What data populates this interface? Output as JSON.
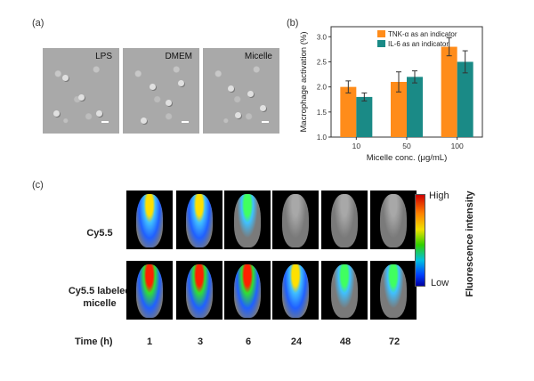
{
  "panel_a": {
    "label": "(a)",
    "images": [
      {
        "label": "LPS"
      },
      {
        "label": "DMEM"
      },
      {
        "label": "Micelle"
      }
    ]
  },
  "panel_b": {
    "label": "(b)"
  },
  "chart_data": {
    "type": "bar",
    "categories": [
      "10",
      "50",
      "100"
    ],
    "series": [
      {
        "name": "TNK-α as an indicator",
        "color": "#ff8c1a",
        "values": [
          2.0,
          2.1,
          2.8
        ],
        "errors": [
          0.12,
          0.2,
          0.18
        ]
      },
      {
        "name": "IL-6 as an indicator",
        "color": "#1a8a86",
        "values": [
          1.8,
          2.2,
          2.5
        ],
        "errors": [
          0.08,
          0.12,
          0.22
        ]
      }
    ],
    "xlabel": "Micelle conc. (μg/mL)",
    "ylabel": "Macrophage activation (%)",
    "ylim": [
      1.0,
      3.2
    ],
    "yticks": [
      "1.0",
      "1.5",
      "2.0",
      "2.5",
      "3.0"
    ],
    "legend_position": "top-right"
  },
  "panel_c": {
    "label": "(c)",
    "row_labels": [
      "Cy5.5",
      "Cy5.5 labeled\nmicelle"
    ],
    "time_label": "Time (h)",
    "times": [
      "1",
      "3",
      "6",
      "24",
      "48",
      "72"
    ],
    "colorbar": {
      "high": "High",
      "low": "Low",
      "title": "Fluorescence intensity"
    },
    "intensity_row1": [
      0.7,
      0.65,
      0.5,
      0.12,
      0.06,
      0.04
    ],
    "intensity_row2": [
      1.0,
      0.95,
      0.9,
      0.7,
      0.55,
      0.45
    ]
  }
}
